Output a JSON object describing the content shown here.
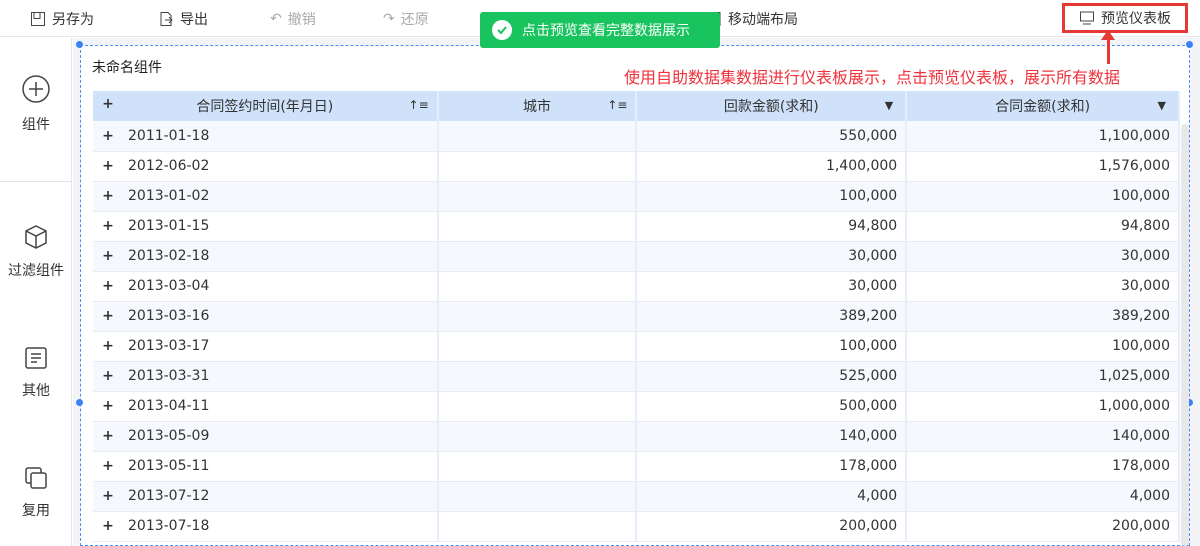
{
  "toolbar": {
    "save_as": "另存为",
    "export": "导出",
    "undo": "撤销",
    "redo": "还原",
    "mobile_layout": "移动端布局",
    "preview": "预览仪表板"
  },
  "toast": {
    "text": "点击预览查看完整数据展示"
  },
  "sidebar": {
    "items": [
      {
        "label": "组件",
        "icon": "plus-circle-icon"
      },
      {
        "label": "过滤组件",
        "icon": "cube-icon"
      },
      {
        "label": "其他",
        "icon": "document-icon"
      },
      {
        "label": "复用",
        "icon": "copy-icon"
      }
    ]
  },
  "widget": {
    "title": "未命名组件"
  },
  "annotation": "使用自助数据集数据进行仪表板展示，点击预览仪表板，展示所有数据",
  "colors": {
    "accent": "#3b82f6",
    "toast": "#19c45e",
    "annotation": "#f0323c"
  },
  "table": {
    "headers": [
      "合同签约时间(年月日)",
      "城市",
      "回款金额(求和)",
      "合同金额(求和)"
    ],
    "rows": [
      [
        "2011-01-18",
        "",
        "550,000",
        "1,100,000"
      ],
      [
        "2012-06-02",
        "",
        "1,400,000",
        "1,576,000"
      ],
      [
        "2013-01-02",
        "",
        "100,000",
        "100,000"
      ],
      [
        "2013-01-15",
        "",
        "94,800",
        "94,800"
      ],
      [
        "2013-02-18",
        "",
        "30,000",
        "30,000"
      ],
      [
        "2013-03-04",
        "",
        "30,000",
        "30,000"
      ],
      [
        "2013-03-16",
        "",
        "389,200",
        "389,200"
      ],
      [
        "2013-03-17",
        "",
        "100,000",
        "100,000"
      ],
      [
        "2013-03-31",
        "",
        "525,000",
        "1,025,000"
      ],
      [
        "2013-04-11",
        "",
        "500,000",
        "1,000,000"
      ],
      [
        "2013-05-09",
        "",
        "140,000",
        "140,000"
      ],
      [
        "2013-05-11",
        "",
        "178,000",
        "178,000"
      ],
      [
        "2013-07-12",
        "",
        "4,000",
        "4,000"
      ],
      [
        "2013-07-18",
        "",
        "200,000",
        "200,000"
      ]
    ]
  }
}
